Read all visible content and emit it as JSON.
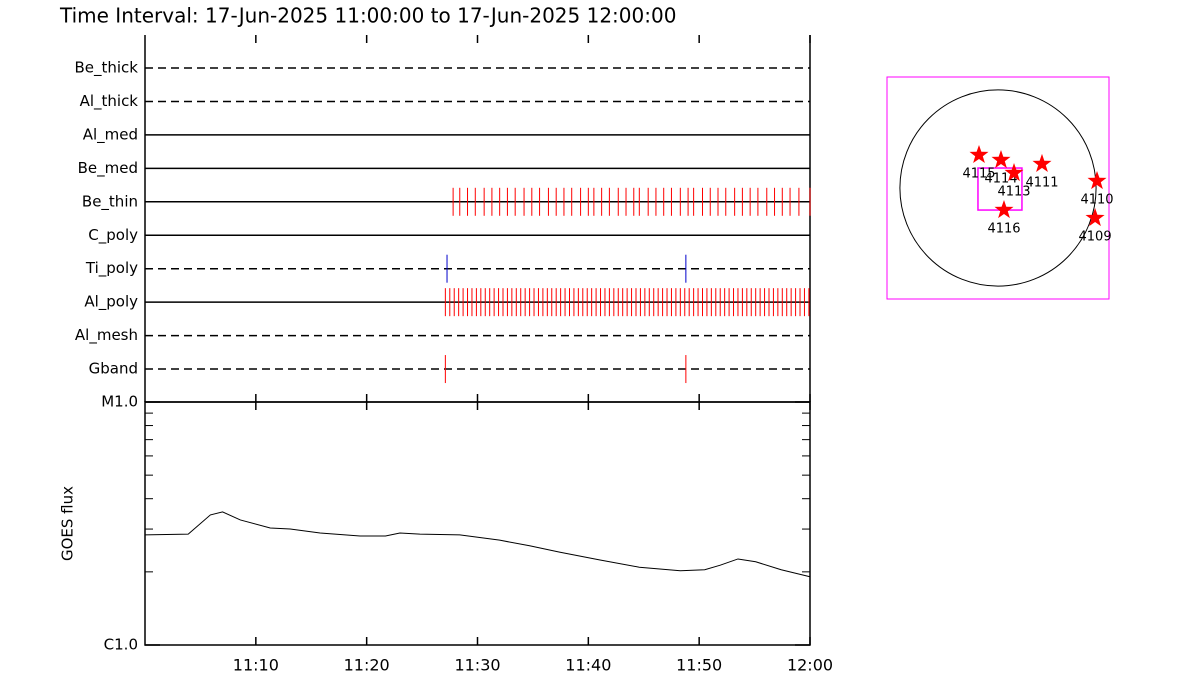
{
  "chart_data": [
    {
      "type": "timeline",
      "title": "Time Interval: 17-Jun-2025 11:00:00 to 17-Jun-2025 12:00:00",
      "xlim": [
        0,
        60
      ],
      "xticks": [
        10,
        20,
        30,
        40,
        50,
        60
      ],
      "rows": [
        {
          "name": "Be_thick",
          "style": "dashed",
          "color": "#ff0000",
          "events": []
        },
        {
          "name": "Al_thick",
          "style": "dashed",
          "color": "#ff0000",
          "events": []
        },
        {
          "name": "Al_med",
          "style": "solid",
          "color": "#ff0000",
          "events": []
        },
        {
          "name": "Be_med",
          "style": "solid",
          "color": "#ff0000",
          "events": []
        },
        {
          "name": "Be_thin",
          "style": "solid",
          "color": "#ff0000",
          "events": [
            27.8,
            28.4,
            29.1,
            29.8,
            30.6,
            31.3,
            32.0,
            32.7,
            33.4,
            34.2,
            34.9,
            35.6,
            36.4,
            37.1,
            37.8,
            38.5,
            39.3,
            40.0,
            40.5,
            41.2,
            41.9,
            42.7,
            43.4,
            44.1,
            44.6,
            45.4,
            46.1,
            46.8,
            47.5,
            48.3,
            49.0,
            49.5,
            50.3,
            51.0,
            51.7,
            52.4,
            53.2,
            53.9,
            54.6,
            55.3,
            56.1,
            56.8,
            57.5,
            58.2,
            59.0,
            60.0
          ]
        },
        {
          "name": "C_poly",
          "style": "solid",
          "color": "#ff0000",
          "events": []
        },
        {
          "name": "Ti_poly",
          "style": "dashed",
          "color": "#0000cc",
          "events": [
            27.25,
            48.8
          ]
        },
        {
          "name": "Al_poly",
          "style": "solid",
          "color": "#ff0000",
          "events": [
            27.1,
            27.5,
            27.9,
            28.3,
            28.7,
            29.1,
            29.5,
            29.9,
            30.3,
            30.7,
            31.1,
            31.5,
            31.9,
            32.3,
            32.7,
            33.1,
            33.5,
            33.9,
            34.3,
            34.7,
            35.1,
            35.5,
            35.9,
            36.3,
            36.7,
            37.1,
            37.5,
            37.9,
            38.3,
            38.7,
            39.1,
            39.5,
            39.9,
            40.3,
            40.7,
            41.1,
            41.5,
            41.9,
            42.3,
            42.7,
            43.1,
            43.5,
            43.9,
            44.3,
            44.7,
            45.1,
            45.5,
            45.9,
            46.3,
            46.7,
            47.1,
            47.5,
            47.9,
            48.3,
            48.7,
            49.1,
            49.5,
            49.9,
            50.3,
            50.7,
            51.1,
            51.5,
            51.9,
            52.3,
            52.7,
            53.1,
            53.5,
            53.9,
            54.3,
            54.7,
            55.1,
            55.5,
            55.9,
            56.3,
            56.7,
            57.1,
            57.5,
            57.9,
            58.3,
            58.7,
            59.1,
            59.5,
            59.9
          ]
        },
        {
          "name": "Al_mesh",
          "style": "dashed",
          "color": "#ff0000",
          "events": []
        },
        {
          "name": "Gband",
          "style": "dashed",
          "color": "#ff0000",
          "events": [
            27.1,
            48.8
          ]
        }
      ]
    },
    {
      "type": "line",
      "ylabel": "GOES flux",
      "log_scale": true,
      "color": "#000000",
      "xlim": [
        0,
        60
      ],
      "xticks": [
        {
          "value": 10,
          "label": "11:10"
        },
        {
          "value": 20,
          "label": "11:20"
        },
        {
          "value": 30,
          "label": "11:30"
        },
        {
          "value": 40,
          "label": "11:40"
        },
        {
          "value": 50,
          "label": "11:50"
        },
        {
          "value": 60,
          "label": "12:00"
        }
      ],
      "ylim": [
        1e-06,
        1e-05
      ],
      "yticks": [
        {
          "value": 1e-06,
          "label": "C1.0"
        },
        {
          "value": 1e-05,
          "label": "M1.0"
        }
      ],
      "yminorticks": [
        2e-06,
        3e-06,
        4e-06,
        5e-06,
        6e-06,
        7e-06,
        8e-06,
        9e-06
      ],
      "x": [
        0,
        3.9,
        5.9,
        7.0,
        8.6,
        11.3,
        13.1,
        15.8,
        19.4,
        21.7,
        23.0,
        24.8,
        28.4,
        32.0,
        34.7,
        37.4,
        41.0,
        44.6,
        48.3,
        50.5,
        51.9,
        53.5,
        55.1,
        57.4,
        60.0
      ],
      "values": [
        2.84e-06,
        2.86e-06,
        3.43e-06,
        3.53e-06,
        3.27e-06,
        3.03e-06,
        3e-06,
        2.89e-06,
        2.81e-06,
        2.81e-06,
        2.89e-06,
        2.86e-06,
        2.84e-06,
        2.7e-06,
        2.56e-06,
        2.41e-06,
        2.24e-06,
        2.09e-06,
        2.02e-06,
        2.04e-06,
        2.13e-06,
        2.26e-06,
        2.2e-06,
        2.04e-06,
        1.91e-06
      ]
    },
    {
      "type": "map",
      "xlim": [
        -1075,
        1075
      ],
      "ylim": [
        -1075,
        1075
      ],
      "disk_radius": 950,
      "box_color": "#ff00ff",
      "color": "#ff0000",
      "fov": {
        "x": 19,
        "y": -10,
        "width": 426,
        "height": 407
      },
      "regions": [
        {
          "name": "4115",
          "x": -184,
          "y": 320
        },
        {
          "name": "4114",
          "x": 29,
          "y": 271
        },
        {
          "name": "4113",
          "x": 155,
          "y": 145
        },
        {
          "name": "4111",
          "x": 426,
          "y": 233
        },
        {
          "name": "4110",
          "x": 959,
          "y": 68
        },
        {
          "name": "4109",
          "x": 940,
          "y": -291
        },
        {
          "name": "4116",
          "x": 58,
          "y": -213
        }
      ]
    }
  ]
}
